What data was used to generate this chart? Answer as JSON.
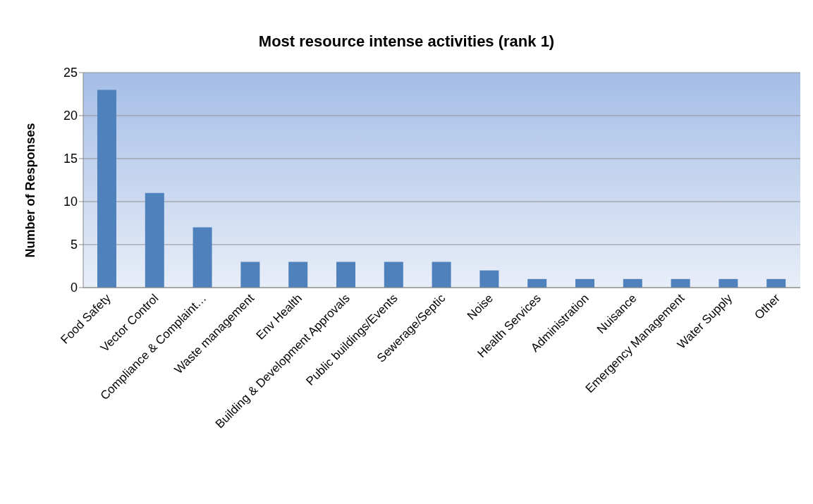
{
  "chart_data": {
    "type": "bar",
    "title": "Most resource intense activities (rank 1)",
    "ylabel": "Number of Responses",
    "categories": [
      "Food Safety",
      "Vector Control",
      "Compliance & Complaint…",
      "Waste management",
      "Env Health",
      "Building & Development Approvals",
      "Public buildings/Events",
      "Sewerage/Septic",
      "Noise",
      "Health Services",
      "Administration",
      "Nuisance",
      "Emergency Management",
      "Water Supply",
      "Other"
    ],
    "values": [
      23,
      11,
      7,
      3,
      3,
      3,
      3,
      3,
      2,
      1,
      1,
      1,
      1,
      1,
      1
    ],
    "color": "#4f81bd",
    "ylim": [
      0,
      25
    ],
    "yticks": [
      0,
      5,
      10,
      15,
      20,
      25
    ],
    "grid": "y",
    "legend": false
  }
}
